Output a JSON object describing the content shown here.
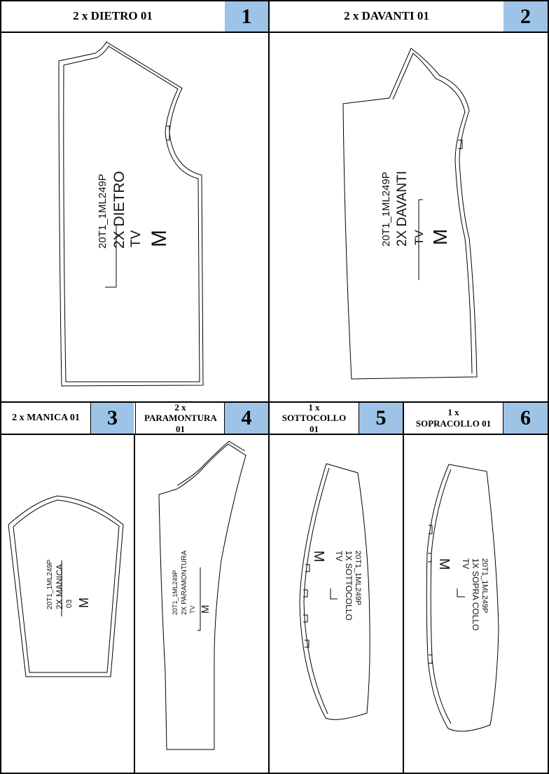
{
  "pieces": [
    {
      "header": "2 x DIETRO 01",
      "number": "1",
      "lines": [
        "20T1_1ML249P",
        "2X DIETRO",
        "TV"
      ],
      "size": "M"
    },
    {
      "header": "2 x DAVANTI 01",
      "number": "2",
      "lines": [
        "20T1_1ML249P",
        "2X DAVANTI",
        "TV"
      ],
      "size": "M"
    },
    {
      "header": "2 x MANICA 01",
      "number": "3",
      "lines": [
        "20T1_1ML249P",
        "2X MANICA",
        "03"
      ],
      "size": "M"
    },
    {
      "header": "2 x PARAMONTURA 01",
      "number": "4",
      "lines": [
        "20T1_1ML249P",
        "2X PARAMONTURA",
        "TV"
      ],
      "size": "M"
    },
    {
      "header": "1 x SOTTOCOLLO 01",
      "number": "5",
      "lines": [
        "20T1_1ML249P",
        "1X SOTTOCOLLO",
        "TV"
      ],
      "size": "M"
    },
    {
      "header": "1 x SOPRACOLLO 01",
      "number": "6",
      "lines": [
        "20T1_1ML249P",
        "1X SOPRA COLLO",
        "TV"
      ],
      "size": "M"
    }
  ]
}
